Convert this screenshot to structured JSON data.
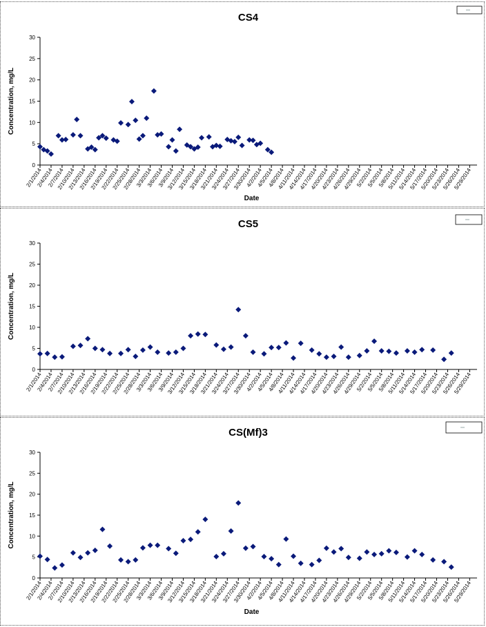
{
  "chart_data": [
    {
      "type": "scatter",
      "title": "CS4",
      "xlabel": "Date",
      "ylabel": "Concentration, mg/L",
      "ylim": [
        0,
        30
      ],
      "yticks": [
        0,
        5,
        10,
        15,
        20,
        25,
        30
      ],
      "xlim": [
        "2014-02-01",
        "2014-05-31"
      ],
      "xtick_labels": [
        "2/1/2014",
        "2/4/2014",
        "2/7/2014",
        "2/10/2014",
        "2/13/2014",
        "2/16/2014",
        "2/19/2014",
        "2/22/2014",
        "2/25/2014",
        "2/28/2014",
        "3/3/2014",
        "3/6/2014",
        "3/9/2014",
        "3/12/2014",
        "3/15/2014",
        "3/18/2014",
        "3/21/2014",
        "3/24/2014",
        "3/27/2014",
        "3/30/2014",
        "4/2/2014",
        "4/5/2014",
        "4/8/2014",
        "4/11/2014",
        "4/14/2014",
        "4/17/2014",
        "4/20/2014",
        "4/23/2014",
        "4/26/2014",
        "4/29/2014",
        "5/2/2014",
        "5/5/2014",
        "5/8/2014",
        "5/11/2014",
        "5/14/2014",
        "5/17/2014",
        "5/20/2014",
        "5/23/2014",
        "5/26/2014",
        "5/29/2014"
      ],
      "grid": false,
      "legend": "top-right",
      "marker_color": "#0a1a7a",
      "points": [
        {
          "x": "2014-02-01",
          "y": 4.3
        },
        {
          "x": "2014-02-02",
          "y": 3.6
        },
        {
          "x": "2014-02-03",
          "y": 3.3
        },
        {
          "x": "2014-02-04",
          "y": 2.6
        },
        {
          "x": "2014-02-06",
          "y": 6.9
        },
        {
          "x": "2014-02-07",
          "y": 5.9
        },
        {
          "x": "2014-02-08",
          "y": 6.0
        },
        {
          "x": "2014-02-10",
          "y": 7.1
        },
        {
          "x": "2014-02-11",
          "y": 10.7
        },
        {
          "x": "2014-02-12",
          "y": 6.9
        },
        {
          "x": "2014-02-14",
          "y": 3.8
        },
        {
          "x": "2014-02-15",
          "y": 4.2
        },
        {
          "x": "2014-02-16",
          "y": 3.6
        },
        {
          "x": "2014-02-17",
          "y": 6.4
        },
        {
          "x": "2014-02-18",
          "y": 6.9
        },
        {
          "x": "2014-02-19",
          "y": 6.3
        },
        {
          "x": "2014-02-21",
          "y": 5.9
        },
        {
          "x": "2014-02-22",
          "y": 5.6
        },
        {
          "x": "2014-02-23",
          "y": 9.9
        },
        {
          "x": "2014-02-25",
          "y": 9.5
        },
        {
          "x": "2014-02-26",
          "y": 14.9
        },
        {
          "x": "2014-02-27",
          "y": 10.5
        },
        {
          "x": "2014-02-28",
          "y": 6.1
        },
        {
          "x": "2014-03-01",
          "y": 6.9
        },
        {
          "x": "2014-03-02",
          "y": 11.0
        },
        {
          "x": "2014-03-04",
          "y": 17.4
        },
        {
          "x": "2014-03-05",
          "y": 7.1
        },
        {
          "x": "2014-03-06",
          "y": 7.3
        },
        {
          "x": "2014-03-08",
          "y": 4.3
        },
        {
          "x": "2014-03-09",
          "y": 5.9
        },
        {
          "x": "2014-03-10",
          "y": 3.3
        },
        {
          "x": "2014-03-11",
          "y": 8.4
        },
        {
          "x": "2014-03-13",
          "y": 4.7
        },
        {
          "x": "2014-03-14",
          "y": 4.3
        },
        {
          "x": "2014-03-15",
          "y": 3.8
        },
        {
          "x": "2014-03-16",
          "y": 4.2
        },
        {
          "x": "2014-03-17",
          "y": 6.4
        },
        {
          "x": "2014-03-19",
          "y": 6.6
        },
        {
          "x": "2014-03-20",
          "y": 4.3
        },
        {
          "x": "2014-03-21",
          "y": 4.6
        },
        {
          "x": "2014-03-22",
          "y": 4.4
        },
        {
          "x": "2014-03-24",
          "y": 6.0
        },
        {
          "x": "2014-03-25",
          "y": 5.7
        },
        {
          "x": "2014-03-26",
          "y": 5.5
        },
        {
          "x": "2014-03-27",
          "y": 6.5
        },
        {
          "x": "2014-03-28",
          "y": 4.6
        },
        {
          "x": "2014-03-30",
          "y": 5.9
        },
        {
          "x": "2014-03-31",
          "y": 5.8
        },
        {
          "x": "2014-04-01",
          "y": 4.8
        },
        {
          "x": "2014-04-02",
          "y": 5.1
        },
        {
          "x": "2014-04-04",
          "y": 3.6
        },
        {
          "x": "2014-04-05",
          "y": 3.0
        }
      ]
    },
    {
      "type": "scatter",
      "title": "CS5",
      "xlabel": "",
      "ylabel": "Concentration, mg/L",
      "ylim": [
        0,
        30
      ],
      "yticks": [
        0,
        5,
        10,
        15,
        20,
        25,
        30
      ],
      "xlim": [
        "2014-02-01",
        "2014-05-31"
      ],
      "xtick_labels": [
        "2/1/2014",
        "2/4/2014",
        "2/7/2014",
        "2/10/2014",
        "2/13/2014",
        "2/16/2014",
        "2/19/2014",
        "2/22/2014",
        "2/25/2014",
        "2/28/2014",
        "3/3/2014",
        "3/6/2014",
        "3/9/2014",
        "3/12/2014",
        "3/15/2014",
        "3/18/2014",
        "3/21/2014",
        "3/24/2014",
        "3/27/2014",
        "3/30/2014",
        "4/2/2014",
        "4/5/2014",
        "4/8/2014",
        "4/11/2014",
        "4/14/2014",
        "4/17/2014",
        "4/20/2014",
        "4/23/2014",
        "4/26/2014",
        "4/29/2014",
        "5/2/2014",
        "5/5/2014",
        "5/8/2014",
        "5/11/2014",
        "5/14/2014",
        "5/17/2014",
        "5/20/2014",
        "5/23/2014",
        "5/26/2014",
        "5/29/2014"
      ],
      "grid": false,
      "legend": "top-right",
      "marker_color": "#0a1a7a",
      "points": [
        {
          "x": "2014-02-01",
          "y": 3.7
        },
        {
          "x": "2014-02-03",
          "y": 3.8
        },
        {
          "x": "2014-02-05",
          "y": 2.9
        },
        {
          "x": "2014-02-07",
          "y": 3.0
        },
        {
          "x": "2014-02-10",
          "y": 5.5
        },
        {
          "x": "2014-02-12",
          "y": 5.7
        },
        {
          "x": "2014-02-14",
          "y": 7.3
        },
        {
          "x": "2014-02-16",
          "y": 5.0
        },
        {
          "x": "2014-02-18",
          "y": 4.7
        },
        {
          "x": "2014-02-20",
          "y": 3.8
        },
        {
          "x": "2014-02-23",
          "y": 3.8
        },
        {
          "x": "2014-02-25",
          "y": 4.7
        },
        {
          "x": "2014-02-27",
          "y": 3.1
        },
        {
          "x": "2014-03-01",
          "y": 4.6
        },
        {
          "x": "2014-03-03",
          "y": 5.3
        },
        {
          "x": "2014-03-05",
          "y": 4.1
        },
        {
          "x": "2014-03-08",
          "y": 3.9
        },
        {
          "x": "2014-03-10",
          "y": 4.1
        },
        {
          "x": "2014-03-12",
          "y": 5.0
        },
        {
          "x": "2014-03-14",
          "y": 8.0
        },
        {
          "x": "2014-03-16",
          "y": 8.4
        },
        {
          "x": "2014-03-18",
          "y": 8.3
        },
        {
          "x": "2014-03-21",
          "y": 5.8
        },
        {
          "x": "2014-03-23",
          "y": 4.8
        },
        {
          "x": "2014-03-25",
          "y": 5.3
        },
        {
          "x": "2014-03-27",
          "y": 14.2
        },
        {
          "x": "2014-03-29",
          "y": 8.0
        },
        {
          "x": "2014-03-31",
          "y": 4.1
        },
        {
          "x": "2014-04-03",
          "y": 3.7
        },
        {
          "x": "2014-04-05",
          "y": 5.2
        },
        {
          "x": "2014-04-07",
          "y": 5.2
        },
        {
          "x": "2014-04-09",
          "y": 6.3
        },
        {
          "x": "2014-04-11",
          "y": 2.7
        },
        {
          "x": "2014-04-13",
          "y": 6.2
        },
        {
          "x": "2014-04-16",
          "y": 4.6
        },
        {
          "x": "2014-04-18",
          "y": 3.7
        },
        {
          "x": "2014-04-20",
          "y": 2.9
        },
        {
          "x": "2014-04-22",
          "y": 3.1
        },
        {
          "x": "2014-04-24",
          "y": 5.3
        },
        {
          "x": "2014-04-26",
          "y": 2.9
        },
        {
          "x": "2014-04-29",
          "y": 3.3
        },
        {
          "x": "2014-05-01",
          "y": 4.4
        },
        {
          "x": "2014-05-03",
          "y": 6.7
        },
        {
          "x": "2014-05-05",
          "y": 4.4
        },
        {
          "x": "2014-05-07",
          "y": 4.3
        },
        {
          "x": "2014-05-09",
          "y": 3.9
        },
        {
          "x": "2014-05-12",
          "y": 4.4
        },
        {
          "x": "2014-05-14",
          "y": 4.1
        },
        {
          "x": "2014-05-16",
          "y": 4.7
        },
        {
          "x": "2014-05-19",
          "y": 4.6
        },
        {
          "x": "2014-05-22",
          "y": 2.4
        },
        {
          "x": "2014-05-24",
          "y": 3.9
        }
      ]
    },
    {
      "type": "scatter",
      "title": "CS(Mf)3",
      "xlabel": "Date",
      "ylabel": "Concentration, mg/L",
      "ylim": [
        0,
        30
      ],
      "yticks": [
        0,
        5,
        10,
        15,
        20,
        25,
        30
      ],
      "xlim": [
        "2014-02-01",
        "2014-05-31"
      ],
      "xtick_labels": [
        "2/1/2014",
        "2/4/2014",
        "2/7/2014",
        "2/10/2014",
        "2/13/2014",
        "2/16/2014",
        "2/19/2014",
        "2/22/2014",
        "2/25/2014",
        "2/28/2014",
        "3/3/2014",
        "3/6/2014",
        "3/9/2014",
        "3/12/2014",
        "3/15/2014",
        "3/18/2014",
        "3/21/2014",
        "3/24/2014",
        "3/27/2014",
        "3/30/2014",
        "4/2/2014",
        "4/5/2014",
        "4/8/2014",
        "4/11/2014",
        "4/14/2014",
        "4/17/2014",
        "4/20/2014",
        "4/23/2014",
        "4/26/2014",
        "4/29/2014",
        "5/2/2014",
        "5/5/2014",
        "5/8/2014",
        "5/11/2014",
        "5/14/2014",
        "5/17/2014",
        "5/20/2014",
        "5/23/2014",
        "5/26/2014",
        "5/29/2014"
      ],
      "grid": false,
      "legend": "top-right",
      "marker_color": "#0a1a7a",
      "points": [
        {
          "x": "2014-02-01",
          "y": 5.2
        },
        {
          "x": "2014-02-03",
          "y": 4.4
        },
        {
          "x": "2014-02-05",
          "y": 2.4
        },
        {
          "x": "2014-02-07",
          "y": 3.1
        },
        {
          "x": "2014-02-10",
          "y": 6.0
        },
        {
          "x": "2014-02-12",
          "y": 4.9
        },
        {
          "x": "2014-02-14",
          "y": 6.0
        },
        {
          "x": "2014-02-16",
          "y": 6.6
        },
        {
          "x": "2014-02-18",
          "y": 11.6
        },
        {
          "x": "2014-02-20",
          "y": 7.6
        },
        {
          "x": "2014-02-23",
          "y": 4.3
        },
        {
          "x": "2014-02-25",
          "y": 3.9
        },
        {
          "x": "2014-02-27",
          "y": 4.3
        },
        {
          "x": "2014-03-01",
          "y": 7.2
        },
        {
          "x": "2014-03-03",
          "y": 7.8
        },
        {
          "x": "2014-03-05",
          "y": 7.8
        },
        {
          "x": "2014-03-08",
          "y": 7.0
        },
        {
          "x": "2014-03-10",
          "y": 5.9
        },
        {
          "x": "2014-03-12",
          "y": 8.9
        },
        {
          "x": "2014-03-14",
          "y": 9.2
        },
        {
          "x": "2014-03-16",
          "y": 11.0
        },
        {
          "x": "2014-03-18",
          "y": 14.0
        },
        {
          "x": "2014-03-21",
          "y": 5.1
        },
        {
          "x": "2014-03-23",
          "y": 5.8
        },
        {
          "x": "2014-03-25",
          "y": 11.2
        },
        {
          "x": "2014-03-27",
          "y": 17.9
        },
        {
          "x": "2014-03-29",
          "y": 7.1
        },
        {
          "x": "2014-03-31",
          "y": 7.5
        },
        {
          "x": "2014-04-03",
          "y": 5.1
        },
        {
          "x": "2014-04-05",
          "y": 4.6
        },
        {
          "x": "2014-04-07",
          "y": 3.2
        },
        {
          "x": "2014-04-09",
          "y": 9.3
        },
        {
          "x": "2014-04-11",
          "y": 5.2
        },
        {
          "x": "2014-04-13",
          "y": 3.5
        },
        {
          "x": "2014-04-16",
          "y": 3.2
        },
        {
          "x": "2014-04-18",
          "y": 4.2
        },
        {
          "x": "2014-04-20",
          "y": 7.1
        },
        {
          "x": "2014-04-22",
          "y": 6.2
        },
        {
          "x": "2014-04-24",
          "y": 7.0
        },
        {
          "x": "2014-04-26",
          "y": 4.9
        },
        {
          "x": "2014-04-29",
          "y": 4.7
        },
        {
          "x": "2014-05-01",
          "y": 6.2
        },
        {
          "x": "2014-05-03",
          "y": 5.6
        },
        {
          "x": "2014-05-05",
          "y": 5.8
        },
        {
          "x": "2014-05-07",
          "y": 6.5
        },
        {
          "x": "2014-05-09",
          "y": 6.1
        },
        {
          "x": "2014-05-12",
          "y": 5.0
        },
        {
          "x": "2014-05-14",
          "y": 6.5
        },
        {
          "x": "2014-05-16",
          "y": 5.6
        },
        {
          "x": "2014-05-19",
          "y": 4.3
        },
        {
          "x": "2014-05-22",
          "y": 3.9
        },
        {
          "x": "2014-05-24",
          "y": 2.6
        }
      ]
    }
  ]
}
